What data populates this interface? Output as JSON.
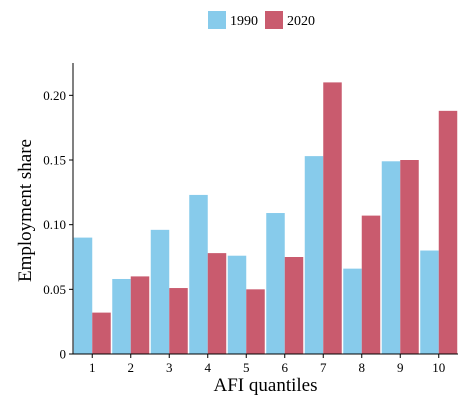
{
  "chart_data": {
    "type": "bar",
    "xlabel": "AFI quantiles",
    "ylabel": "Employment share",
    "categories": [
      "1",
      "2",
      "3",
      "4",
      "5",
      "6",
      "7",
      "8",
      "9",
      "10"
    ],
    "ylim": [
      0,
      0.225
    ],
    "yticks": [
      0,
      0.05,
      0.1,
      0.15,
      0.2
    ],
    "ytick_labels": [
      "0",
      "0.05",
      "0.10",
      "0.15",
      "0.20"
    ],
    "grid": false,
    "legend_position": "top-center",
    "series": [
      {
        "name": "1990",
        "color": "#87CBEB",
        "values": [
          0.09,
          0.058,
          0.096,
          0.123,
          0.076,
          0.109,
          0.153,
          0.066,
          0.149,
          0.08
        ]
      },
      {
        "name": "2020",
        "color": "#C95B6E",
        "values": [
          0.032,
          0.06,
          0.051,
          0.078,
          0.05,
          0.075,
          0.21,
          0.107,
          0.15,
          0.188
        ]
      }
    ]
  }
}
